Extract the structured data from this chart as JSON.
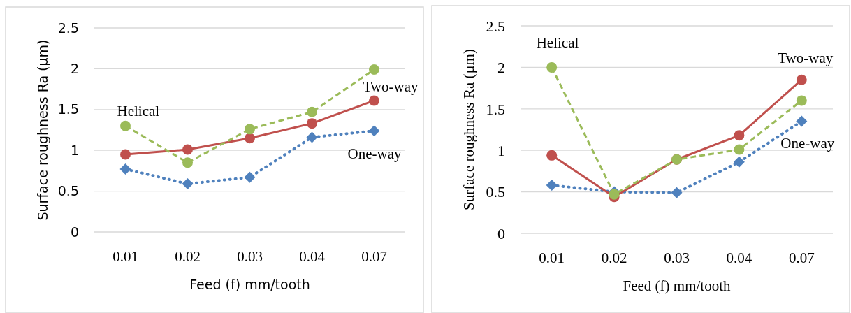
{
  "chart_data": [
    {
      "type": "line",
      "xlabel": "Feed (f) mm/tooth",
      "ylabel": "Surface roughness Ra (µm)",
      "categories": [
        "0.01",
        "0.02",
        "0.03",
        "0.04",
        "0.07"
      ],
      "ylim": [
        0,
        2.5
      ],
      "yticks": [
        0,
        0.5,
        1,
        1.5,
        2,
        2.5
      ],
      "grid": "y",
      "series": [
        {
          "name": "Helical",
          "color": "#9bbb59",
          "line_style": "dashed",
          "marker": "circle",
          "values": [
            1.3,
            0.85,
            1.26,
            1.47,
            1.99
          ]
        },
        {
          "name": "Two-way",
          "color": "#c0504d",
          "line_style": "solid",
          "marker": "circle",
          "values": [
            0.95,
            1.01,
            1.15,
            1.33,
            1.61
          ]
        },
        {
          "name": "One-way",
          "color": "#4f81bd",
          "line_style": "dotted",
          "marker": "diamond",
          "values": [
            0.77,
            0.59,
            0.67,
            1.16,
            1.24
          ]
        }
      ]
    },
    {
      "type": "line",
      "xlabel": "Feed (f) mm/tooth",
      "ylabel": "Surface roughness Ra (µm)",
      "categories": [
        "0.01",
        "0.02",
        "0.03",
        "0.04",
        "0.07"
      ],
      "ylim": [
        0,
        2.5
      ],
      "yticks": [
        0,
        0.5,
        1,
        1.5,
        2,
        2.5
      ],
      "grid": "y",
      "series": [
        {
          "name": "Helical",
          "color": "#9bbb59",
          "line_style": "dashed",
          "marker": "circle",
          "values": [
            2.0,
            0.47,
            0.89,
            1.01,
            1.6
          ]
        },
        {
          "name": "Two-way",
          "color": "#c0504d",
          "line_style": "solid",
          "marker": "circle",
          "values": [
            0.94,
            0.44,
            0.89,
            1.18,
            1.85
          ]
        },
        {
          "name": "One-way",
          "color": "#4f81bd",
          "line_style": "dotted",
          "marker": "diamond",
          "values": [
            0.58,
            0.5,
            0.49,
            0.86,
            1.35
          ]
        }
      ]
    }
  ]
}
